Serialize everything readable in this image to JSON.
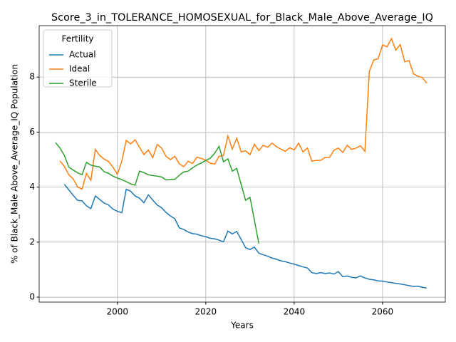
{
  "chart_data": {
    "type": "line",
    "title": "Score_3_in_TOLERANCE_HOMOSEXUAL_for_Black_Male_Above_Average_IQ",
    "xlabel": "Years",
    "ylabel": "% of Black_Male Above_Average_IQ Population",
    "legend_title": "Fertility",
    "legend": "upper left",
    "grid": true,
    "xlim": [
      1982.3,
      2074.2
    ],
    "ylim": [
      -0.18,
      9.87
    ],
    "xticks": [
      2000,
      2020,
      2040,
      2060
    ],
    "yticks": [
      0,
      2,
      4,
      6,
      8
    ],
    "x": [
      1986,
      1987,
      1988,
      1989,
      1990,
      1991,
      1992,
      1993,
      1994,
      1995,
      1996,
      1997,
      1998,
      1999,
      2000,
      2001,
      2002,
      2003,
      2004,
      2005,
      2006,
      2007,
      2008,
      2009,
      2010,
      2011,
      2012,
      2013,
      2014,
      2015,
      2016,
      2017,
      2018,
      2019,
      2020,
      2021,
      2022,
      2023,
      2024,
      2025,
      2026,
      2027,
      2028,
      2029,
      2030,
      2031,
      2032,
      2033,
      2034,
      2035,
      2036,
      2037,
      2038,
      2039,
      2040,
      2041,
      2042,
      2043,
      2044,
      2045,
      2046,
      2047,
      2048,
      2049,
      2050,
      2051,
      2052,
      2053,
      2054,
      2055,
      2056,
      2057,
      2058,
      2059,
      2060,
      2061,
      2062,
      2063,
      2064,
      2065,
      2066,
      2067,
      2068,
      2069,
      2070
    ],
    "series": [
      {
        "name": "Actual",
        "color": "#1f77b4",
        "values": [
          null,
          null,
          4.1,
          3.9,
          3.7,
          3.52,
          3.5,
          3.32,
          3.22,
          3.68,
          3.55,
          3.42,
          3.35,
          3.2,
          3.12,
          3.07,
          3.92,
          3.85,
          3.68,
          3.6,
          3.43,
          3.72,
          3.53,
          3.35,
          3.25,
          3.08,
          2.95,
          2.85,
          2.52,
          2.46,
          2.37,
          2.31,
          2.29,
          2.23,
          2.2,
          2.14,
          2.12,
          2.07,
          2.01,
          2.4,
          2.3,
          2.39,
          2.1,
          1.8,
          1.73,
          1.82,
          1.6,
          1.54,
          1.49,
          1.42,
          1.38,
          1.32,
          1.29,
          1.24,
          1.2,
          1.15,
          1.1,
          1.06,
          0.89,
          0.86,
          0.89,
          0.86,
          0.88,
          0.84,
          0.93,
          0.74,
          0.77,
          0.72,
          0.7,
          0.77,
          0.7,
          0.65,
          0.63,
          0.59,
          0.58,
          0.55,
          0.53,
          0.5,
          0.48,
          0.45,
          0.42,
          0.39,
          0.4,
          0.36,
          0.33
        ]
      },
      {
        "name": "Ideal",
        "color": "#ff7f0e",
        "values": [
          null,
          4.95,
          4.75,
          4.45,
          4.3,
          4.0,
          3.93,
          4.5,
          4.25,
          5.37,
          5.15,
          5.02,
          4.93,
          4.72,
          4.47,
          4.95,
          5.7,
          5.57,
          5.72,
          5.45,
          5.18,
          5.35,
          5.07,
          5.55,
          5.42,
          5.12,
          5.0,
          5.12,
          4.85,
          4.74,
          4.94,
          4.86,
          5.09,
          5.04,
          4.98,
          4.87,
          4.84,
          5.12,
          5.15,
          5.86,
          5.38,
          5.78,
          5.28,
          5.32,
          5.18,
          5.56,
          5.33,
          5.52,
          5.45,
          5.6,
          5.47,
          5.38,
          5.3,
          5.43,
          5.35,
          5.6,
          5.28,
          5.42,
          4.94,
          4.97,
          4.97,
          5.08,
          5.08,
          5.34,
          5.42,
          5.26,
          5.52,
          5.37,
          5.42,
          5.5,
          5.3,
          8.2,
          8.62,
          8.67,
          9.17,
          9.1,
          9.4,
          8.98,
          9.18,
          8.56,
          8.6,
          8.12,
          8.03,
          7.98,
          7.78
        ]
      },
      {
        "name": "Sterile",
        "color": "#2ca02c",
        "values": [
          5.62,
          5.42,
          5.15,
          4.73,
          4.62,
          4.52,
          4.45,
          4.9,
          4.8,
          4.76,
          4.73,
          4.56,
          4.5,
          4.4,
          4.33,
          4.27,
          4.2,
          4.12,
          4.07,
          4.58,
          4.53,
          4.45,
          4.42,
          4.4,
          4.37,
          4.26,
          4.28,
          4.28,
          4.43,
          4.55,
          4.58,
          4.7,
          4.8,
          4.88,
          4.97,
          5.05,
          5.23,
          5.48,
          4.92,
          5.03,
          4.58,
          4.68,
          4.1,
          3.52,
          3.63,
          2.8,
          1.95,
          null,
          null,
          null,
          null,
          null,
          null,
          null,
          null,
          null,
          null,
          null,
          null,
          null,
          null,
          null,
          null,
          null,
          null,
          null,
          null,
          null,
          null,
          null,
          null,
          null,
          null,
          null,
          null,
          null,
          null,
          null,
          null,
          null,
          null,
          null,
          null,
          null,
          null
        ]
      }
    ]
  }
}
